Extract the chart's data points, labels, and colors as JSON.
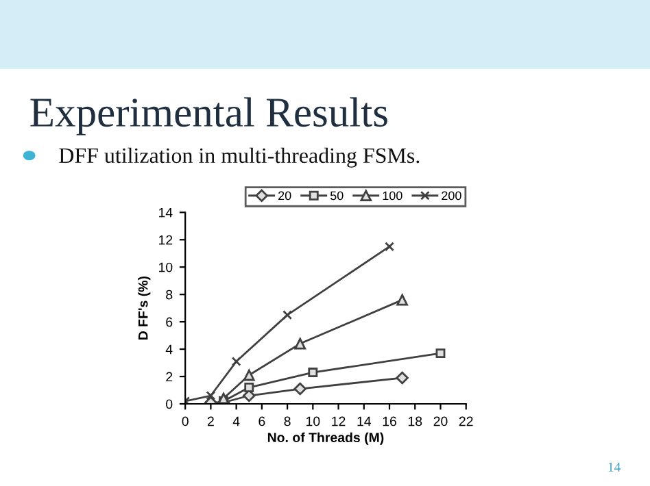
{
  "chart_data": {
    "type": "line",
    "title": "Experimental Results",
    "subtitle": "DFF utilization in multi-threading FSMs.",
    "annotations": [
      "14"
    ],
    "xlabel": "No. of Threads (M)",
    "ylabel": "D FF's (%)",
    "xlim": [
      0,
      22
    ],
    "xticks": [
      0,
      2,
      4,
      6,
      8,
      10,
      12,
      14,
      16,
      18,
      20,
      22
    ],
    "ylim": [
      0,
      14
    ],
    "yticks": [
      0,
      2,
      4,
      6,
      8,
      10,
      12,
      14
    ],
    "grid": false,
    "legend": "top right",
    "line_style": "solid",
    "series": [
      {
        "name": "20",
        "color": "#404040",
        "marker": "diamond",
        "x": [
          2,
          3,
          5,
          9,
          17
        ],
        "values": [
          0.1,
          0.1,
          0.6,
          1.1,
          1.9
        ]
      },
      {
        "name": "50",
        "color": "#404040",
        "marker": "square",
        "x": [
          3,
          5,
          10,
          20
        ],
        "values": [
          0.2,
          1.2,
          2.3,
          3.7
        ]
      },
      {
        "name": "100",
        "color": "#404040",
        "marker": "triangle",
        "x": [
          3,
          5,
          9,
          17
        ],
        "values": [
          0.4,
          2.1,
          4.4,
          7.6
        ]
      },
      {
        "name": "200",
        "color": "#404040",
        "marker": "cross",
        "x": [
          0,
          2,
          4,
          8,
          16
        ],
        "values": [
          0.2,
          0.6,
          3.1,
          6.5,
          11.5
        ]
      }
    ]
  }
}
